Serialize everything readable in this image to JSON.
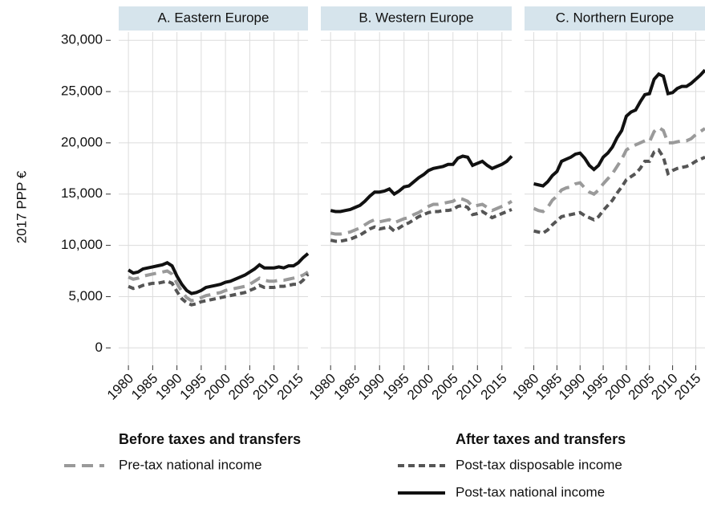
{
  "chart_data": [
    {
      "type": "line",
      "title": "A. Eastern Europe",
      "ylabel": "2017 PPP €",
      "x": [
        1980,
        1981,
        1982,
        1983,
        1984,
        1985,
        1986,
        1987,
        1988,
        1989,
        1990,
        1991,
        1992,
        1993,
        1994,
        1995,
        1996,
        1997,
        1998,
        1999,
        2000,
        2001,
        2002,
        2003,
        2004,
        2005,
        2006,
        2007,
        2008,
        2009,
        2010,
        2011,
        2012,
        2013,
        2014,
        2015,
        2016,
        2017
      ],
      "xlim": [
        1978,
        2017
      ],
      "xticks": [
        1980,
        1985,
        1990,
        1995,
        2000,
        2005,
        2010,
        2015
      ],
      "ylim": [
        -1700,
        30800
      ],
      "yticks": [
        0,
        {
          "value": 5000,
          "label": "5,000"
        },
        {
          "value": 10000,
          "label": "10,000"
        },
        {
          "value": 15000,
          "label": "15,000"
        },
        {
          "value": 20000,
          "label": "20,000"
        },
        {
          "value": 25000,
          "label": "25,000"
        },
        {
          "value": 30000,
          "label": "30,000"
        }
      ],
      "grid": true,
      "series": [
        {
          "name": "Pre-tax national income",
          "color": "#9a9a9a",
          "style": "long-dash",
          "values": [
            6900,
            6700,
            6800,
            7000,
            7100,
            7200,
            7300,
            7400,
            7500,
            7200,
            6300,
            5500,
            4900,
            4600,
            4700,
            4900,
            5100,
            5200,
            5300,
            5400,
            5600,
            5700,
            5800,
            5900,
            6000,
            6200,
            6500,
            6800,
            6600,
            6500,
            6500,
            6600,
            6600,
            6700,
            6800,
            6900,
            7100,
            7400
          ]
        },
        {
          "name": "Post-tax disposable income",
          "color": "#555555",
          "style": "short-dash",
          "values": [
            6000,
            5800,
            5900,
            6100,
            6200,
            6300,
            6300,
            6400,
            6500,
            6300,
            5500,
            4800,
            4400,
            4200,
            4300,
            4500,
            4600,
            4700,
            4800,
            4900,
            5000,
            5100,
            5200,
            5300,
            5400,
            5600,
            5800,
            6100,
            5900,
            5900,
            5900,
            6000,
            6000,
            6100,
            6200,
            6200,
            6600,
            7200
          ]
        },
        {
          "name": "Post-tax national income",
          "color": "#111111",
          "style": "solid",
          "values": [
            7600,
            7300,
            7400,
            7700,
            7800,
            7900,
            8000,
            8100,
            8300,
            8000,
            7000,
            6200,
            5600,
            5300,
            5400,
            5600,
            5900,
            6000,
            6100,
            6200,
            6400,
            6500,
            6700,
            6900,
            7100,
            7400,
            7700,
            8100,
            7800,
            7800,
            7800,
            7900,
            7800,
            8000,
            8000,
            8300,
            8800,
            9200
          ]
        }
      ]
    },
    {
      "type": "line",
      "title": "B. Western Europe",
      "x": [
        1980,
        1981,
        1982,
        1983,
        1984,
        1985,
        1986,
        1987,
        1988,
        1989,
        1990,
        1991,
        1992,
        1993,
        1994,
        1995,
        1996,
        1997,
        1998,
        1999,
        2000,
        2001,
        2002,
        2003,
        2004,
        2005,
        2006,
        2007,
        2008,
        2009,
        2010,
        2011,
        2012,
        2013,
        2014,
        2015,
        2016,
        2017
      ],
      "xlim": [
        1978,
        2017
      ],
      "xticks": [
        1980,
        1985,
        1990,
        1995,
        2000,
        2005,
        2010,
        2015
      ],
      "ylim": [
        -1700,
        30800
      ],
      "yticks": [
        0,
        5000,
        10000,
        15000,
        20000,
        25000,
        30000
      ],
      "grid": true,
      "series": [
        {
          "name": "Pre-tax national income",
          "color": "#9a9a9a",
          "style": "long-dash",
          "values": [
            11200,
            11100,
            11100,
            11200,
            11300,
            11500,
            11700,
            12000,
            12300,
            12500,
            12300,
            12400,
            12500,
            12200,
            12400,
            12600,
            12700,
            13000,
            13200,
            13500,
            13800,
            14000,
            14000,
            14100,
            14200,
            14300,
            14600,
            14500,
            14300,
            13800,
            13900,
            14000,
            13700,
            13400,
            13600,
            13800,
            14000,
            14300
          ]
        },
        {
          "name": "Post-tax disposable income",
          "color": "#555555",
          "style": "short-dash",
          "values": [
            10500,
            10400,
            10400,
            10500,
            10600,
            10800,
            11000,
            11300,
            11600,
            11800,
            11600,
            11700,
            11800,
            11400,
            11700,
            12000,
            12200,
            12500,
            12800,
            13000,
            13200,
            13300,
            13300,
            13400,
            13400,
            13500,
            13800,
            13900,
            13700,
            13000,
            13100,
            13300,
            13000,
            12700,
            12900,
            13100,
            13300,
            13500
          ]
        },
        {
          "name": "Post-tax national income",
          "color": "#111111",
          "style": "solid",
          "values": [
            13400,
            13300,
            13300,
            13400,
            13500,
            13700,
            13900,
            14300,
            14800,
            15200,
            15200,
            15300,
            15500,
            15000,
            15300,
            15700,
            15800,
            16200,
            16600,
            16900,
            17300,
            17500,
            17600,
            17700,
            17900,
            17900,
            18500,
            18700,
            18600,
            17800,
            18000,
            18200,
            17800,
            17500,
            17700,
            17900,
            18200,
            18700
          ]
        }
      ]
    },
    {
      "type": "line",
      "title": "C. Northern Europe",
      "x": [
        1980,
        1981,
        1982,
        1983,
        1984,
        1985,
        1986,
        1987,
        1988,
        1989,
        1990,
        1991,
        1992,
        1993,
        1994,
        1995,
        1996,
        1997,
        1998,
        1999,
        2000,
        2001,
        2002,
        2003,
        2004,
        2005,
        2006,
        2007,
        2008,
        2009,
        2010,
        2011,
        2012,
        2013,
        2014,
        2015,
        2016,
        2017
      ],
      "xlim": [
        1978,
        2017
      ],
      "xticks": [
        1980,
        1985,
        1990,
        1995,
        2000,
        2005,
        2010,
        2015
      ],
      "ylim": [
        -1700,
        30800
      ],
      "yticks": [
        0,
        5000,
        10000,
        15000,
        20000,
        25000,
        30000
      ],
      "grid": true,
      "series": [
        {
          "name": "Pre-tax national income",
          "color": "#9a9a9a",
          "style": "long-dash",
          "values": [
            13600,
            13400,
            13300,
            13700,
            14400,
            14800,
            15400,
            15600,
            15700,
            16000,
            16100,
            15600,
            15200,
            15000,
            15400,
            16000,
            16500,
            17000,
            17700,
            18400,
            19300,
            19600,
            19800,
            20000,
            20200,
            20100,
            21100,
            21500,
            21200,
            20000,
            20000,
            20100,
            20200,
            20200,
            20400,
            20800,
            21100,
            21400
          ]
        },
        {
          "name": "Post-tax disposable income",
          "color": "#555555",
          "style": "short-dash",
          "values": [
            11400,
            11300,
            11200,
            11500,
            12000,
            12400,
            12800,
            12900,
            13000,
            13100,
            13200,
            12900,
            12700,
            12500,
            12800,
            13400,
            13900,
            14400,
            15100,
            15700,
            16400,
            16700,
            17000,
            17500,
            18200,
            18200,
            19100,
            19300,
            18600,
            17000,
            17300,
            17500,
            17600,
            17700,
            17900,
            18200,
            18400,
            18600
          ]
        },
        {
          "name": "Post-tax national income",
          "color": "#111111",
          "style": "solid",
          "values": [
            16000,
            15900,
            15800,
            16200,
            16800,
            17200,
            18200,
            18400,
            18600,
            18900,
            19000,
            18500,
            17800,
            17400,
            17800,
            18600,
            19000,
            19600,
            20500,
            21200,
            22600,
            23000,
            23200,
            24000,
            24700,
            24800,
            26200,
            26700,
            26500,
            24800,
            24900,
            25300,
            25500,
            25500,
            25800,
            26200,
            26600,
            27100
          ]
        }
      ]
    }
  ],
  "legend_headings": [
    "Before taxes and transfers",
    "After taxes and transfers"
  ]
}
